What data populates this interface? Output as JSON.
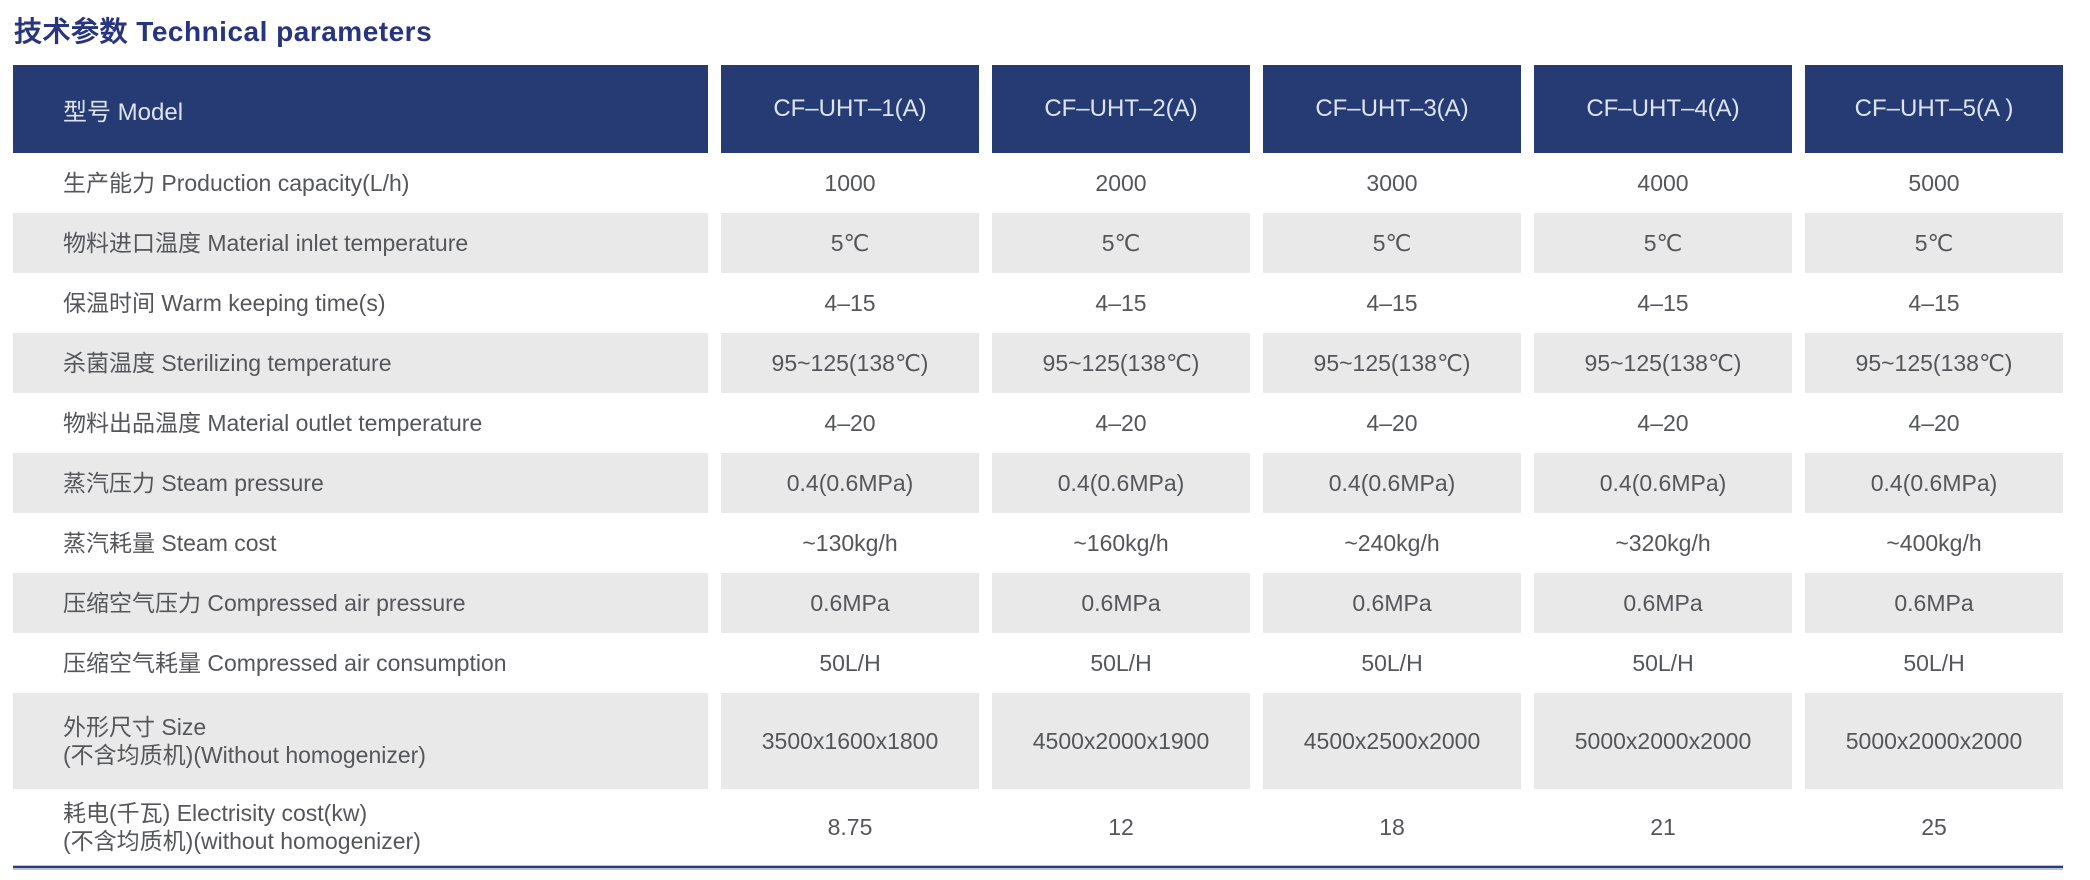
{
  "page": {
    "title_zh": "技术参数",
    "title_en": "Technical parameters"
  },
  "table": {
    "header": {
      "label": "型号 Model",
      "models": [
        "CF–UHT–1(A)",
        "CF–UHT–2(A)",
        "CF–UHT–3(A)",
        "CF–UHT–4(A)",
        "CF–UHT–5(A )"
      ]
    },
    "rows": [
      {
        "label": "生产能力 Production capacity(L/h)",
        "values": [
          "1000",
          "2000",
          "3000",
          "4000",
          "5000"
        ]
      },
      {
        "label": "物料进口温度 Material inlet temperature",
        "values": [
          "5℃",
          "5℃",
          "5℃",
          "5℃",
          "5℃"
        ]
      },
      {
        "label": "保温时间 Warm keeping time(s)",
        "values": [
          "4–15",
          "4–15",
          "4–15",
          "4–15",
          "4–15"
        ]
      },
      {
        "label": "杀菌温度 Sterilizing temperature",
        "values": [
          "95~125(138℃)",
          "95~125(138℃)",
          "95~125(138℃)",
          "95~125(138℃)",
          "95~125(138℃)"
        ]
      },
      {
        "label": "物料出品温度 Material outlet temperature",
        "values": [
          "4–20",
          "4–20",
          "4–20",
          "4–20",
          "4–20"
        ]
      },
      {
        "label": "蒸汽压力 Steam pressure",
        "values": [
          "0.4(0.6MPa)",
          "0.4(0.6MPa)",
          "0.4(0.6MPa)",
          "0.4(0.6MPa)",
          "0.4(0.6MPa)"
        ]
      },
      {
        "label": "蒸汽耗量 Steam cost",
        "values": [
          "~130kg/h",
          "~160kg/h",
          "~240kg/h",
          "~320kg/h",
          "~400kg/h"
        ]
      },
      {
        "label": "压缩空气压力 Compressed air pressure",
        "values": [
          "0.6MPa",
          "0.6MPa",
          "0.6MPa",
          "0.6MPa",
          "0.6MPa"
        ]
      },
      {
        "label": "压缩空气耗量 Compressed air consumption",
        "values": [
          "50L/H",
          "50L/H",
          "50L/H",
          "50L/H",
          "50L/H"
        ]
      },
      {
        "label": "外形尺寸 Size\n(不含均质机)(Without homogenizer)",
        "values": [
          "3500x1600x1800",
          "4500x2000x1900",
          "4500x2500x2000",
          "5000x2000x2000",
          "5000x2000x2000"
        ]
      },
      {
        "label": "耗电(千瓦) Electrisity cost(kw)\n(不含均质机)(without homogenizer)",
        "values": [
          "8.75",
          "12",
          "18",
          "21",
          "25"
        ]
      }
    ]
  },
  "colors": {
    "title_color": "#27357e",
    "header_bg": "#263b73",
    "header_text": "#dde4f0",
    "shaded_row_bg": "#e9e9e9",
    "body_text": "#55565a",
    "rule_color": "#2b3f76"
  }
}
